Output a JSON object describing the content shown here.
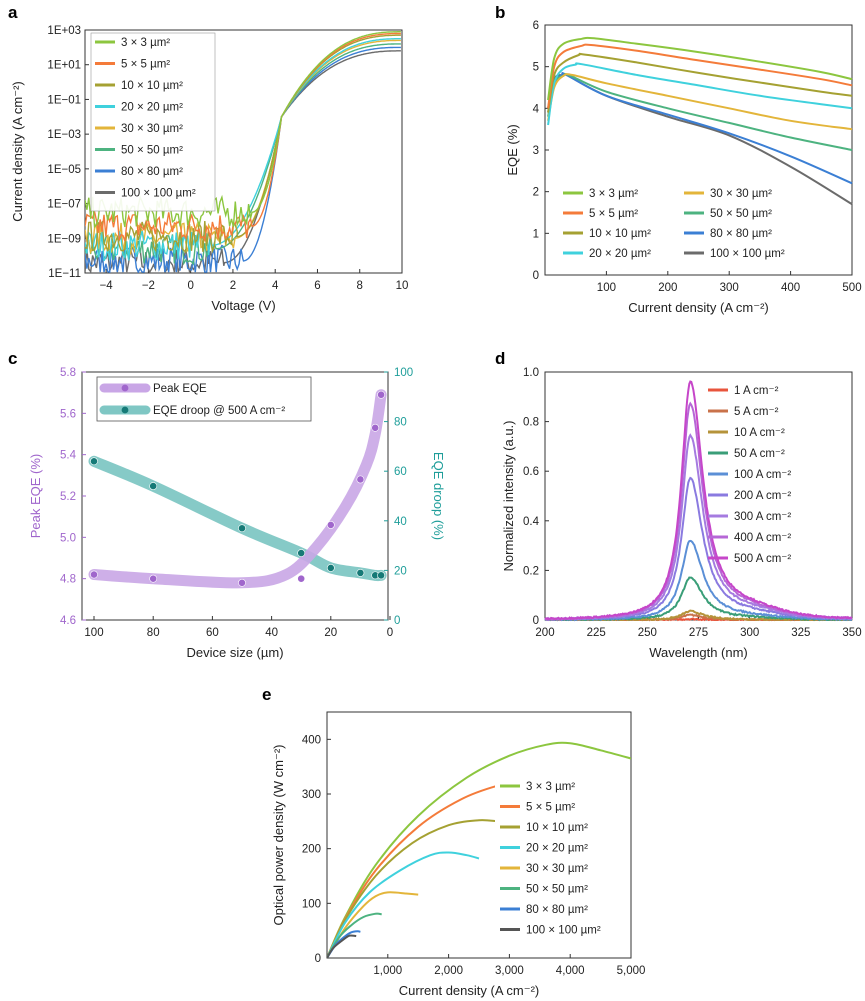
{
  "chart_data": [
    {
      "panel": "a",
      "type": "line",
      "xlabel": "Voltage (V)",
      "ylabel": "Current density (A cm⁻²)",
      "xlim": [
        -5,
        10
      ],
      "ylim_log10": [
        -11,
        3
      ],
      "y_scale": "log",
      "xticks": [
        "−4",
        "−2",
        "0",
        "2",
        "4",
        "6",
        "8",
        "10"
      ],
      "yticks": [
        "1E−11",
        "1E−09",
        "1E−07",
        "1E−05",
        "1E−03",
        "1E−01",
        "1E+01",
        "1E+03"
      ],
      "legend": "top-left",
      "series": [
        {
          "name": "3 × 3 µm²",
          "color": "#8cc63f",
          "noise_end": 2.9,
          "noise_level": -7.5,
          "log_at_10V": 2.9
        },
        {
          "name": "5 × 5 µm²",
          "color": "#f47b3a",
          "noise_end": 2.9,
          "noise_level": -8.3,
          "log_at_10V": 2.8
        },
        {
          "name": "10 × 10 µm²",
          "color": "#a5a132",
          "noise_end": 2.2,
          "noise_level": -8.9,
          "log_at_10V": 2.7
        },
        {
          "name": "20 × 20 µm²",
          "color": "#3fd1dd",
          "noise_end": 1.0,
          "noise_level": -9.4,
          "log_at_10V": 2.5
        },
        {
          "name": "30 × 30 µm²",
          "color": "#e3b53a",
          "noise_end": 2.1,
          "noise_level": -9.0,
          "log_at_10V": 2.4
        },
        {
          "name": "50 × 50 µm²",
          "color": "#4db380",
          "noise_end": 1.2,
          "noise_level": -9.6,
          "log_at_10V": 2.2
        },
        {
          "name": "80 × 80 µm²",
          "color": "#3b7fd4",
          "noise_end": 2.5,
          "noise_level": -10.3,
          "log_at_10V": 2.0
        },
        {
          "name": "100 × 100 µm²",
          "color": "#6b6b6b",
          "noise_end": 1.6,
          "noise_level": -10.4,
          "log_at_10V": 1.8
        }
      ]
    },
    {
      "panel": "b",
      "type": "line",
      "xlabel": "Current density (A cm⁻²)",
      "ylabel": "EQE (%)",
      "xlim": [
        0,
        500
      ],
      "ylim": [
        0,
        6
      ],
      "xticks": [
        "100",
        "200",
        "300",
        "400",
        "500"
      ],
      "yticks": [
        "0",
        "1",
        "2",
        "3",
        "4",
        "5",
        "6"
      ],
      "legend": "bottom, two columns",
      "series": [
        {
          "name": "3 × 3 µm²",
          "color": "#8cc63f",
          "points": [
            [
              5,
              4.2
            ],
            [
              15,
              5.2
            ],
            [
              30,
              5.55
            ],
            [
              60,
              5.67
            ],
            [
              80,
              5.68
            ],
            [
              150,
              5.55
            ],
            [
              250,
              5.35
            ],
            [
              350,
              5.12
            ],
            [
              450,
              4.87
            ],
            [
              500,
              4.7
            ]
          ]
        },
        {
          "name": "5 × 5 µm²",
          "color": "#f47b3a",
          "points": [
            [
              5,
              4.0
            ],
            [
              15,
              5.0
            ],
            [
              30,
              5.35
            ],
            [
              60,
              5.5
            ],
            [
              75,
              5.52
            ],
            [
              150,
              5.38
            ],
            [
              250,
              5.15
            ],
            [
              350,
              4.93
            ],
            [
              450,
              4.7
            ],
            [
              500,
              4.55
            ]
          ]
        },
        {
          "name": "10 × 10 µm²",
          "color": "#a5a132",
          "points": [
            [
              5,
              3.9
            ],
            [
              15,
              4.8
            ],
            [
              30,
              5.1
            ],
            [
              55,
              5.28
            ],
            [
              65,
              5.29
            ],
            [
              150,
              5.1
            ],
            [
              250,
              4.85
            ],
            [
              350,
              4.62
            ],
            [
              450,
              4.4
            ],
            [
              500,
              4.3
            ]
          ]
        },
        {
          "name": "20 × 20 µm²",
          "color": "#3fd1dd",
          "points": [
            [
              5,
              3.6
            ],
            [
              15,
              4.6
            ],
            [
              30,
              4.95
            ],
            [
              50,
              5.05
            ],
            [
              60,
              5.06
            ],
            [
              150,
              4.8
            ],
            [
              250,
              4.55
            ],
            [
              350,
              4.3
            ],
            [
              450,
              4.1
            ],
            [
              500,
              4.0
            ]
          ]
        },
        {
          "name": "30 × 30 µm²",
          "color": "#e3b53a",
          "points": [
            [
              5,
              3.7
            ],
            [
              15,
              4.5
            ],
            [
              30,
              4.78
            ],
            [
              45,
              4.8
            ],
            [
              100,
              4.6
            ],
            [
              200,
              4.3
            ],
            [
              300,
              4.0
            ],
            [
              400,
              3.7
            ],
            [
              500,
              3.5
            ]
          ]
        },
        {
          "name": "50 × 50 µm²",
          "color": "#4db380",
          "points": [
            [
              5,
              3.8
            ],
            [
              15,
              4.6
            ],
            [
              30,
              4.78
            ],
            [
              40,
              4.79
            ],
            [
              100,
              4.4
            ],
            [
              200,
              4.0
            ],
            [
              300,
              3.65
            ],
            [
              400,
              3.3
            ],
            [
              500,
              3.0
            ]
          ]
        },
        {
          "name": "80 × 80 µm²",
          "color": "#3b7fd4",
          "points": [
            [
              5,
              3.9
            ],
            [
              15,
              4.6
            ],
            [
              28,
              4.8
            ],
            [
              35,
              4.8
            ],
            [
              100,
              4.3
            ],
            [
              200,
              3.85
            ],
            [
              300,
              3.4
            ],
            [
              400,
              2.85
            ],
            [
              500,
              2.2
            ]
          ]
        },
        {
          "name": "100 × 100 µm²",
          "color": "#6b6b6b",
          "points": [
            [
              5,
              4.0
            ],
            [
              15,
              4.7
            ],
            [
              28,
              4.8
            ],
            [
              35,
              4.8
            ],
            [
              100,
              4.3
            ],
            [
              200,
              3.8
            ],
            [
              300,
              3.35
            ],
            [
              400,
              2.6
            ],
            [
              500,
              1.7
            ]
          ]
        }
      ]
    },
    {
      "panel": "c",
      "type": "scatter",
      "xlabel": "Device size (µm)",
      "ylabel": "Peak EQE (%)",
      "ylabel_right": "EQE droop (%)",
      "xlim": [
        100,
        0
      ],
      "x_reversed": true,
      "ylim": [
        4.6,
        5.8
      ],
      "ylim_right": [
        0,
        100
      ],
      "xticks": [
        "100",
        "80",
        "60",
        "40",
        "20",
        "0"
      ],
      "yticks": [
        "4.6",
        "4.8",
        "5.0",
        "5.2",
        "5.4",
        "5.6",
        "5.8"
      ],
      "yticks_right": [
        "0",
        "20",
        "40",
        "60",
        "80",
        "100"
      ],
      "legend": "top-left",
      "series": [
        {
          "name": "Peak EQE",
          "color": "#a066cc",
          "trend_color": "#c9a6e6",
          "points": [
            [
              100,
              4.82
            ],
            [
              80,
              4.8
            ],
            [
              50,
              4.78
            ],
            [
              30,
              4.8
            ],
            [
              20,
              5.06
            ],
            [
              10,
              5.28
            ],
            [
              5,
              5.53
            ],
            [
              3,
              5.69
            ]
          ],
          "trend": [
            [
              100,
              4.82
            ],
            [
              80,
              4.8
            ],
            [
              50,
              4.78
            ],
            [
              35,
              4.82
            ],
            [
              25,
              4.95
            ],
            [
              15,
              5.15
            ],
            [
              8,
              5.35
            ],
            [
              5,
              5.5
            ],
            [
              3,
              5.69
            ]
          ]
        },
        {
          "name": "EQE droop @ 500 A cm⁻²",
          "color": "#1f9e9a",
          "trend_color": "#7fc7c4",
          "points": [
            [
              100,
              64
            ],
            [
              80,
              54
            ],
            [
              50,
              37
            ],
            [
              30,
              27
            ],
            [
              20,
              21
            ],
            [
              10,
              19
            ],
            [
              5,
              18
            ],
            [
              3,
              18
            ]
          ],
          "trend": [
            [
              100,
              64
            ],
            [
              80,
              54
            ],
            [
              50,
              37
            ],
            [
              30,
              27
            ],
            [
              20,
              21
            ],
            [
              10,
              19
            ],
            [
              5,
              18
            ],
            [
              3,
              18
            ]
          ]
        }
      ]
    },
    {
      "panel": "d",
      "type": "line",
      "xlabel": "Wavelength (nm)",
      "ylabel": "Normalized intensity (a.u.)",
      "xlim": [
        200,
        350
      ],
      "ylim": [
        0,
        1.0
      ],
      "xticks": [
        "200",
        "225",
        "250",
        "275",
        "300",
        "325",
        "350"
      ],
      "yticks": [
        "0",
        "0.2",
        "0.4",
        "0.6",
        "0.8",
        "1.0"
      ],
      "legend": "top-right",
      "peak_nm": 271,
      "series": [
        {
          "name": "1 A cm⁻²",
          "color": "#e8553c",
          "peak": 0.004
        },
        {
          "name": "5 A cm⁻²",
          "color": "#c9724a",
          "peak": 0.02
        },
        {
          "name": "10 A cm⁻²",
          "color": "#b5933a",
          "peak": 0.035
        },
        {
          "name": "50 A cm⁻²",
          "color": "#3a9e78",
          "peak": 0.17
        },
        {
          "name": "100 A cm⁻²",
          "color": "#5b8fd6",
          "peak": 0.32
        },
        {
          "name": "200 A cm⁻²",
          "color": "#8a7ae0",
          "peak": 0.57
        },
        {
          "name": "300 A cm⁻²",
          "color": "#a57be0",
          "peak": 0.74
        },
        {
          "name": "400 A cm⁻²",
          "color": "#b667d6",
          "peak": 0.87
        },
        {
          "name": "500 A cm⁻²",
          "color": "#c646c9",
          "peak": 0.96
        }
      ]
    },
    {
      "panel": "e",
      "type": "line",
      "xlabel": "Current density (A cm⁻²)",
      "ylabel": "Optical power density (W cm⁻²)",
      "xlim": [
        0,
        5000
      ],
      "ylim": [
        0,
        450
      ],
      "xticks": [
        "1,000",
        "2,000",
        "3,000",
        "4,000",
        "5,000"
      ],
      "yticks": [
        "0",
        "100",
        "200",
        "300",
        "400"
      ],
      "legend": "right",
      "series": [
        {
          "name": "3 × 3 µm²",
          "color": "#8cc63f",
          "points": [
            [
              0,
              0
            ],
            [
              300,
              75
            ],
            [
              800,
              170
            ],
            [
              1500,
              260
            ],
            [
              2300,
              330
            ],
            [
              3000,
              370
            ],
            [
              3600,
              390
            ],
            [
              4000,
              393
            ],
            [
              4500,
              380
            ],
            [
              5000,
              365
            ]
          ]
        },
        {
          "name": "5 × 5 µm²",
          "color": "#f47b3a",
          "points": [
            [
              0,
              0
            ],
            [
              300,
              72
            ],
            [
              800,
              160
            ],
            [
              1500,
              240
            ],
            [
              2200,
              290
            ],
            [
              2800,
              315
            ],
            [
              3200,
              322
            ],
            [
              3500,
              320
            ]
          ]
        },
        {
          "name": "10 × 10 µm²",
          "color": "#a5a132",
          "points": [
            [
              0,
              0
            ],
            [
              300,
              70
            ],
            [
              800,
              150
            ],
            [
              1400,
              210
            ],
            [
              2000,
              243
            ],
            [
              2500,
              252
            ],
            [
              2800,
              250
            ]
          ]
        },
        {
          "name": "20 × 20 µm²",
          "color": "#3fd1dd",
          "points": [
            [
              0,
              0
            ],
            [
              300,
              65
            ],
            [
              700,
              120
            ],
            [
              1200,
              160
            ],
            [
              1700,
              188
            ],
            [
              2000,
              193
            ],
            [
              2300,
              188
            ],
            [
              2500,
              182
            ]
          ]
        },
        {
          "name": "30 × 30 µm²",
          "color": "#e3b53a",
          "points": [
            [
              0,
              0
            ],
            [
              300,
              55
            ],
            [
              600,
              95
            ],
            [
              800,
              113
            ],
            [
              1000,
              120
            ],
            [
              1300,
              118
            ],
            [
              1500,
              116
            ]
          ]
        },
        {
          "name": "50 × 50 µm²",
          "color": "#4db380",
          "points": [
            [
              0,
              0
            ],
            [
              200,
              38
            ],
            [
              400,
              60
            ],
            [
              600,
              75
            ],
            [
              800,
              81
            ],
            [
              900,
              80
            ]
          ]
        },
        {
          "name": "80 × 80 µm²",
          "color": "#3b7fd4",
          "points": [
            [
              0,
              0
            ],
            [
              150,
              25
            ],
            [
              300,
              40
            ],
            [
              400,
              47
            ],
            [
              500,
              49
            ],
            [
              550,
              48
            ]
          ]
        },
        {
          "name": "100 × 100 µm²",
          "color": "#555555",
          "points": [
            [
              0,
              0
            ],
            [
              100,
              18
            ],
            [
              250,
              32
            ],
            [
              350,
              40
            ],
            [
              420,
              41
            ],
            [
              480,
              40
            ]
          ]
        }
      ]
    }
  ]
}
